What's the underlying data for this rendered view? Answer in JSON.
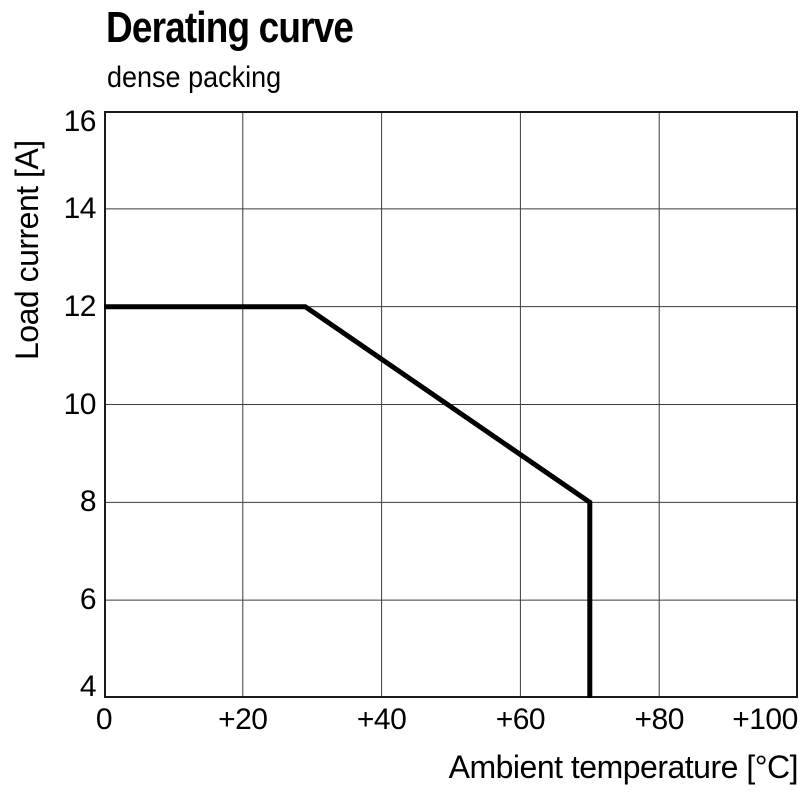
{
  "chart_data": {
    "type": "line",
    "title": "Derating curve",
    "subtitle": "dense packing",
    "xlabel": "Ambient temperature [°C]",
    "ylabel": "Load current [A]",
    "xlim": [
      0,
      100
    ],
    "ylim": [
      4,
      16
    ],
    "grid": true,
    "legend": "none",
    "x_ticks": {
      "values": [
        0,
        20,
        40,
        60,
        80,
        100
      ],
      "labels": [
        "0",
        "+20",
        "+40",
        "+60",
        "+80",
        "+100"
      ]
    },
    "y_ticks": {
      "values": [
        4,
        6,
        8,
        10,
        12,
        14,
        16
      ],
      "labels": [
        "4",
        "6",
        "8",
        "10",
        "12",
        "14",
        "16"
      ]
    },
    "series": [
      {
        "name": "load-current-derating",
        "color": "#000000",
        "stroke_width": 5,
        "points": [
          [
            0,
            12
          ],
          [
            29,
            12
          ],
          [
            70,
            8
          ],
          [
            70,
            4
          ]
        ]
      }
    ],
    "colors": {
      "background": "#ffffff",
      "text": "#000000",
      "grid": "#3c3c3c",
      "border": "#1a1a1a"
    }
  }
}
